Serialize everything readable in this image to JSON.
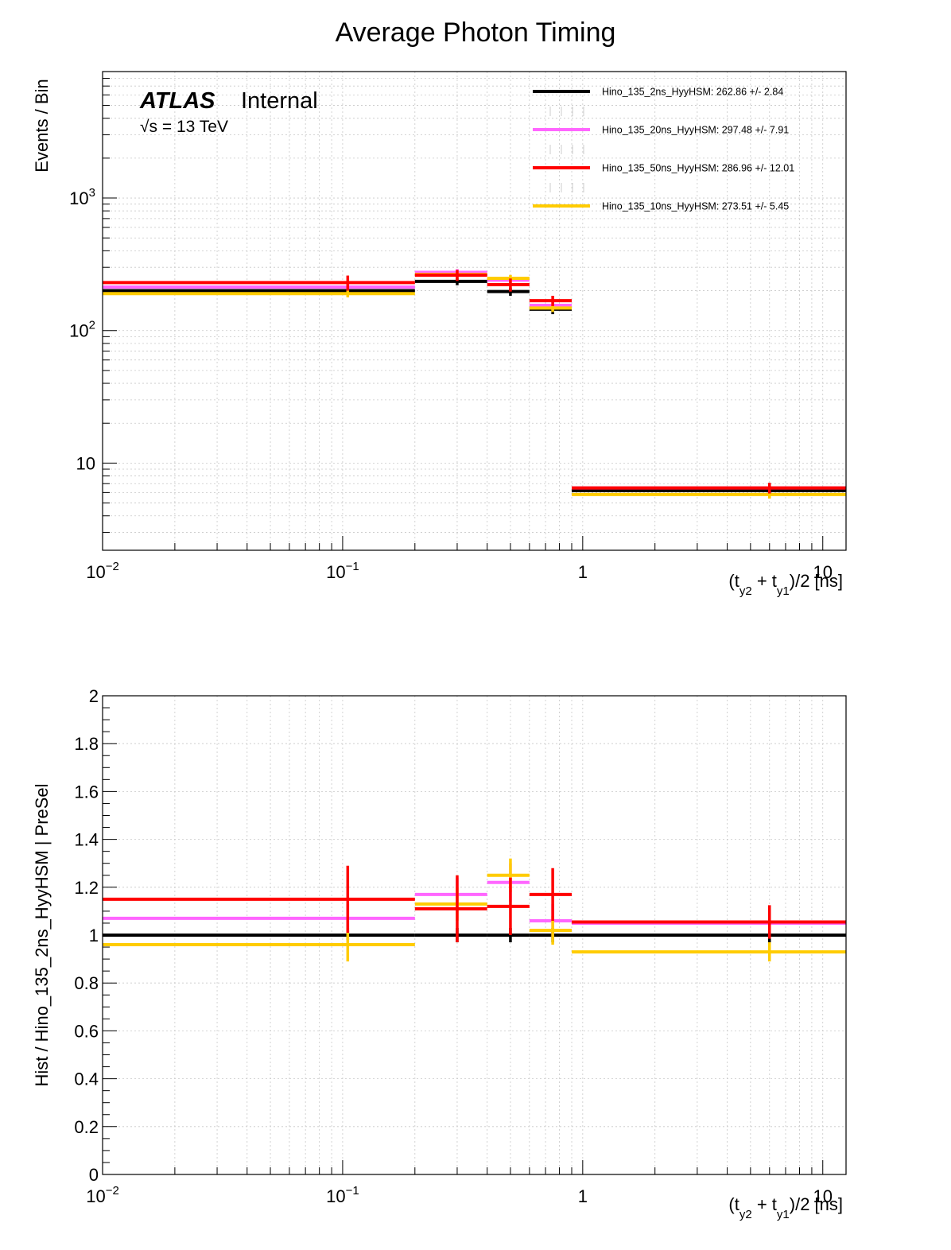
{
  "title": "Average Photon Timing",
  "atlas": {
    "label": "ATLAS",
    "status": "Internal",
    "energy": "√s = 13 TeV"
  },
  "colors": {
    "ref": "#000000",
    "c20": "#ff66ff",
    "c50": "#ff0000",
    "c10": "#ffcc00"
  },
  "legend": [
    {
      "label": "Hino_135_2ns_HyyHSM: 262.86 +/- 2.84",
      "color": "#000000"
    },
    {
      "label": "Hino_135_20ns_HyyHSM: 297.48 +/- 7.91",
      "color": "#ff66ff"
    },
    {
      "label": "Hino_135_50ns_HyyHSM: 286.96 +/- 12.01",
      "color": "#ff0000"
    },
    {
      "label": "Hino_135_10ns_HyyHSM: 273.51 +/- 5.45",
      "color": "#ffcc00"
    }
  ],
  "chart_data": [
    {
      "type": "histogram",
      "name": "top",
      "title": "Average Photon Timing",
      "xlabel": "(t_y2 + t_y1)/2 [ns]",
      "ylabel": "Events / Bin",
      "xscale": "log",
      "yscale": "log",
      "xlim": [
        0.01,
        12.5
      ],
      "ylim": [
        2.2,
        9000
      ],
      "bin_edges": [
        0.01,
        0.2,
        0.4,
        0.6,
        0.9,
        12.5
      ],
      "bin_centers": [
        0.105,
        0.3,
        0.5,
        0.75,
        6.0
      ],
      "x_tick_labels": [
        "10^-2",
        "10^-1",
        "1",
        "10"
      ],
      "y_tick_labels": [
        "10",
        "10^2",
        "10^3"
      ],
      "series": [
        {
          "name": "Hino_135_2ns_HyyHSM",
          "color": "#000000",
          "values": [
            200,
            235,
            197,
            145,
            6.2
          ],
          "errors": [
            14,
            15,
            14,
            12,
            0.5
          ]
        },
        {
          "name": "Hino_135_20ns_HyyHSM",
          "color": "#ff66ff",
          "values": [
            213,
            275,
            240,
            155,
            6.5
          ],
          "errors": [
            14,
            16,
            15,
            12,
            0.5
          ]
        },
        {
          "name": "Hino_135_50ns_HyyHSM",
          "color": "#ff0000",
          "values": [
            230,
            262,
            222,
            168,
            6.5
          ],
          "errors": [
            30,
            25,
            25,
            15,
            0.6
          ]
        },
        {
          "name": "Hino_135_10ns_HyyHSM",
          "color": "#ffcc00",
          "values": [
            190,
            265,
            248,
            148,
            5.8
          ],
          "errors": [
            12,
            15,
            15,
            10,
            0.4
          ]
        }
      ]
    },
    {
      "type": "histogram",
      "name": "ratio",
      "xlabel": "(t_y2 + t_y1)/2 [ns]",
      "ylabel": "Hist / Hino_135_2ns_HyyHSM | PreSel",
      "xscale": "log",
      "yscale": "linear",
      "xlim": [
        0.01,
        12.5
      ],
      "ylim": [
        0,
        2
      ],
      "bin_edges": [
        0.01,
        0.2,
        0.4,
        0.6,
        0.9,
        12.5
      ],
      "bin_centers": [
        0.105,
        0.3,
        0.5,
        0.75,
        6.0
      ],
      "x_tick_labels": [
        "10^-2",
        "10^-1",
        "1",
        "10"
      ],
      "y_tick_labels": [
        "0",
        "0.2",
        "0.4",
        "0.6",
        "0.8",
        "1",
        "1.2",
        "1.4",
        "1.6",
        "1.8",
        "2"
      ],
      "series": [
        {
          "name": "Hino_135_2ns_HyyHSM",
          "color": "#000000",
          "values": [
            1.0,
            1.0,
            1.0,
            1.0,
            1.0
          ],
          "errors": [
            0.02,
            0.03,
            0.03,
            0.03,
            0.03
          ]
        },
        {
          "name": "Hino_135_20ns_HyyHSM",
          "color": "#ff66ff",
          "values": [
            1.07,
            1.17,
            1.22,
            1.06,
            1.05
          ],
          "errors": [
            0.06,
            0.07,
            0.08,
            0.07,
            0.06
          ]
        },
        {
          "name": "Hino_135_50ns_HyyHSM",
          "color": "#ff0000",
          "values": [
            1.15,
            1.11,
            1.12,
            1.17,
            1.055
          ],
          "errors": [
            0.14,
            0.14,
            0.12,
            0.11,
            0.07
          ]
        },
        {
          "name": "Hino_135_10ns_HyyHSM",
          "color": "#ffcc00",
          "values": [
            0.96,
            1.13,
            1.25,
            1.02,
            0.93
          ],
          "errors": [
            0.07,
            0.07,
            0.07,
            0.06,
            0.04
          ]
        }
      ]
    }
  ]
}
